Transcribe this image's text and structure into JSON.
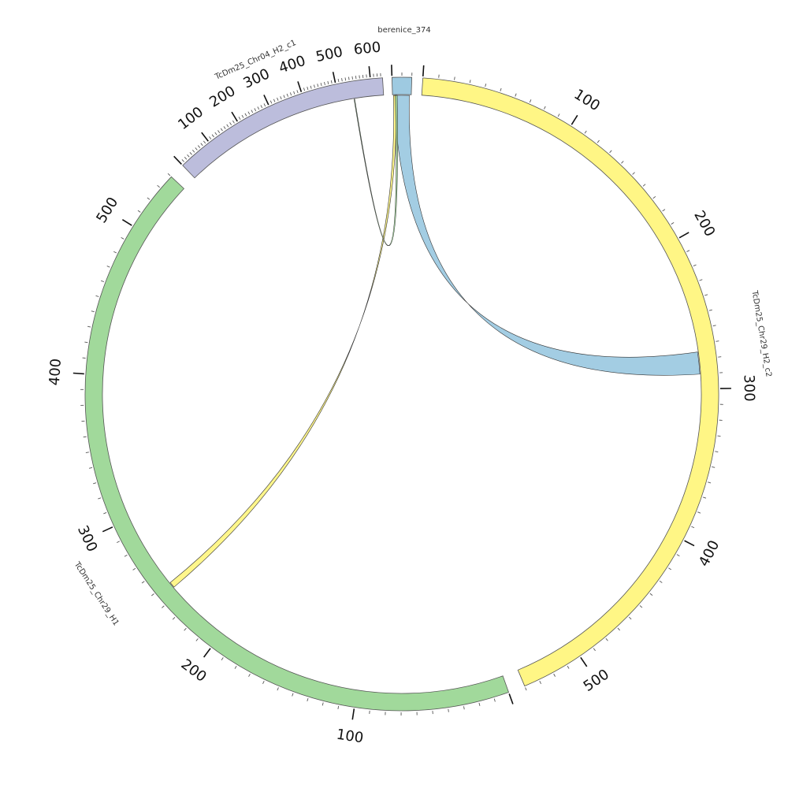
{
  "diagram": {
    "type": "circos",
    "sequences": [
      {
        "id": "berenice",
        "name": "berenice_374",
        "length": 20,
        "color": "#9ecae1",
        "tick_labels": []
      },
      {
        "id": "chr29h2",
        "name": "TcDm25_Chr29_H2_c2",
        "length": 540,
        "color": "#fff685",
        "tick_labels": [
          "100",
          "200",
          "300",
          "400",
          "500"
        ]
      },
      {
        "id": "chr29h1",
        "name": "TcDm25_Chr29_H1",
        "length": 540,
        "color": "#a1d99b",
        "tick_labels": [
          "100",
          "200",
          "300",
          "400",
          "500"
        ]
      },
      {
        "id": "chr04",
        "name": "TcDm25_Chr04_H2_c1",
        "length": 635,
        "color": "#bcbddc",
        "tick_labels": [
          "100",
          "200",
          "300",
          "400",
          "500",
          "600"
        ]
      }
    ],
    "links": [
      {
        "source": "berenice",
        "source_range": [
          2,
          18
        ],
        "target": "chr29h2",
        "target_range": [
          275,
          290
        ],
        "color": "#9ecae1"
      },
      {
        "source": "berenice",
        "source_range": [
          1,
          4
        ],
        "target": "chr29h1",
        "target_range": [
          245,
          249
        ],
        "color": "#fff685"
      },
      {
        "source": "berenice",
        "source_range": [
          3,
          5
        ],
        "target": "chr04",
        "target_range": [
          545,
          547
        ],
        "color": "#a1d99b"
      }
    ]
  }
}
